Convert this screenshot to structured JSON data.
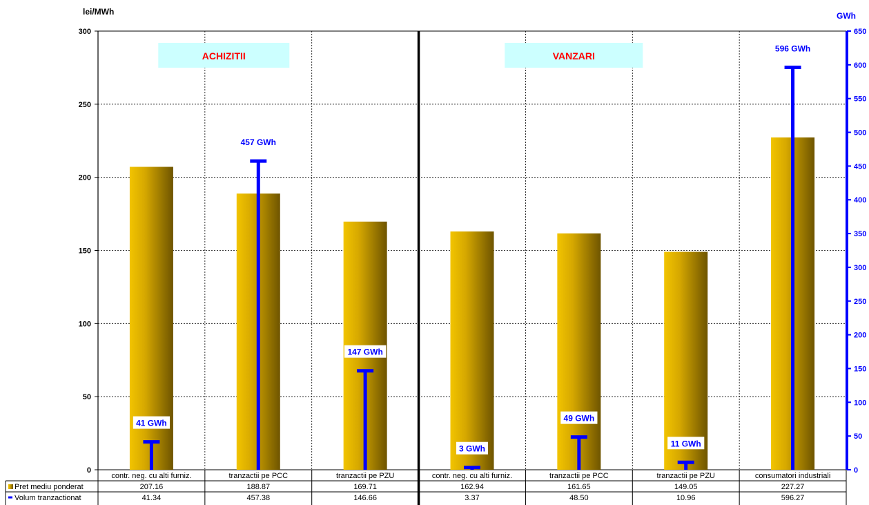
{
  "chart_data": {
    "type": "bar",
    "left_axis_unit": "lei/MWh",
    "right_axis_unit": "GWh",
    "ylim_left": [
      0,
      300
    ],
    "ylim_right": [
      0,
      650
    ],
    "left_ticks": [
      "0",
      "50",
      "100",
      "150",
      "200",
      "250",
      "300"
    ],
    "right_ticks": [
      "0",
      "50",
      "100",
      "150",
      "200",
      "250",
      "300",
      "350",
      "400",
      "450",
      "500",
      "550",
      "600",
      "650"
    ],
    "grid": true,
    "sections": [
      "ACHIZITII",
      "VANZARI"
    ],
    "categories": [
      "contr. neg. cu alti furniz.",
      "tranzactii pe PCC",
      "tranzactii pe PZU",
      "contr. neg. cu alti furniz.",
      "tranzactii pe PCC",
      "tranzactii pe PZU",
      "consumatori industriali"
    ],
    "series": [
      {
        "name": "Pret mediu ponderat",
        "axis": "left",
        "style": "bar",
        "color": "#d8a800",
        "values": [
          207.16,
          188.87,
          169.71,
          162.94,
          161.65,
          149.05,
          227.27
        ],
        "value_labels": [
          "207.16",
          "188.87",
          "169.71",
          "162.94",
          "161.65",
          "149.05",
          "227.27"
        ]
      },
      {
        "name": "Volum tranzactionat",
        "axis": "right",
        "style": "line-marker",
        "color": "#0000ff",
        "values": [
          41.34,
          457.38,
          146.66,
          3.37,
          48.5,
          10.96,
          596.27
        ],
        "value_labels": [
          "41.34",
          "457.38",
          "146.66",
          "3.37",
          "48.50",
          "10.96",
          "596.27"
        ]
      }
    ],
    "data_labels": [
      "41 GWh",
      "457 GWh",
      "147 GWh",
      "3 GWh",
      "49 GWh",
      "11 GWh",
      "596 GWh"
    ]
  }
}
